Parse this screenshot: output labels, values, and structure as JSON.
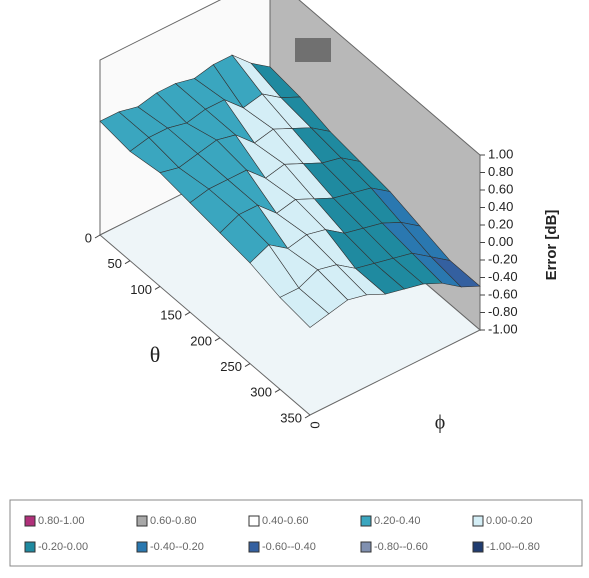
{
  "chart_data": {
    "type": "surface",
    "x_label": "θ",
    "y_label": "ϕ",
    "z_label": "Error [dB]",
    "xlim": [
      0,
      350
    ],
    "xticks": [
      0,
      50,
      100,
      150,
      200,
      250,
      300,
      350
    ],
    "y_tick": "0",
    "zlim": [
      -1,
      1
    ],
    "zticks": [
      {
        "value": 1,
        "label": "1.00"
      },
      {
        "value": 0.8,
        "label": "0.80"
      },
      {
        "value": 0.6,
        "label": "0.60"
      },
      {
        "value": 0.4,
        "label": "0.40"
      },
      {
        "value": 0.2,
        "label": "0.20"
      },
      {
        "value": 0,
        "label": "0.00"
      },
      {
        "value": -0.2,
        "label": "-0.20"
      },
      {
        "value": -0.4,
        "label": "-0.40"
      },
      {
        "value": -0.6,
        "label": "-0.60"
      },
      {
        "value": -0.8,
        "label": "-0.80"
      },
      {
        "value": -1,
        "label": "-1.00"
      }
    ],
    "x": [
      0,
      50,
      100,
      150,
      200,
      250,
      300,
      350
    ],
    "z": [
      [
        -0.05,
        0.1,
        0.3,
        0.3,
        0.25,
        0.3,
        0.3,
        0.25,
        0.3,
        0.3
      ],
      [
        -0.1,
        0.0,
        0.15,
        0.1,
        0.3,
        0.3,
        0.25,
        0.3,
        0.3,
        0.25
      ],
      [
        -0.2,
        -0.05,
        0.05,
        0.15,
        0.1,
        0.3,
        0.35,
        0.3,
        0.25,
        0.3
      ],
      [
        -0.25,
        -0.1,
        -0.05,
        0.05,
        0.15,
        0.1,
        0.3,
        0.3,
        0.3,
        0.25
      ],
      [
        -0.3,
        -0.15,
        -0.1,
        -0.05,
        0.05,
        0.15,
        0.1,
        0.3,
        0.3,
        0.2
      ],
      [
        -0.4,
        -0.25,
        -0.15,
        -0.1,
        -0.05,
        0.1,
        0.15,
        0.1,
        0.25,
        0.15
      ],
      [
        -0.5,
        -0.35,
        -0.2,
        -0.15,
        -0.1,
        -0.05,
        0.1,
        0.15,
        0.05,
        0.05
      ],
      [
        -0.5,
        -0.4,
        -0.25,
        -0.15,
        -0.1,
        -0.05,
        0.05,
        0.1,
        0.05,
        0.0
      ]
    ],
    "bands": [
      {
        "label": "0.80-1.00",
        "min": 0.8,
        "max": 1,
        "color": "#b0307a"
      },
      {
        "label": "0.60-0.80",
        "min": 0.6,
        "max": 0.8,
        "color": "#a8a8a8"
      },
      {
        "label": "0.40-0.60",
        "min": 0.4,
        "max": 0.6,
        "color": "#ffffff"
      },
      {
        "label": "0.20-0.40",
        "min": 0.2,
        "max": 0.4,
        "color": "#3aa6bf"
      },
      {
        "label": "0.00-0.20",
        "min": 0,
        "max": 0.2,
        "color": "#d4eef6"
      },
      {
        "label": "-0.20-0.00",
        "min": -0.2,
        "max": 0,
        "color": "#1f8aa0"
      },
      {
        "label": "-0.40--0.20",
        "min": -0.4,
        "max": -0.2,
        "color": "#2a78b0"
      },
      {
        "label": "-0.60--0.40",
        "min": -0.6,
        "max": -0.4,
        "color": "#3460a0"
      },
      {
        "label": "-0.80--0.60",
        "min": -0.8,
        "max": -0.6,
        "color": "#8090b0"
      },
      {
        "label": "-1.00--0.80",
        "min": -1,
        "max": -0.8,
        "color": "#203c70"
      }
    ]
  }
}
